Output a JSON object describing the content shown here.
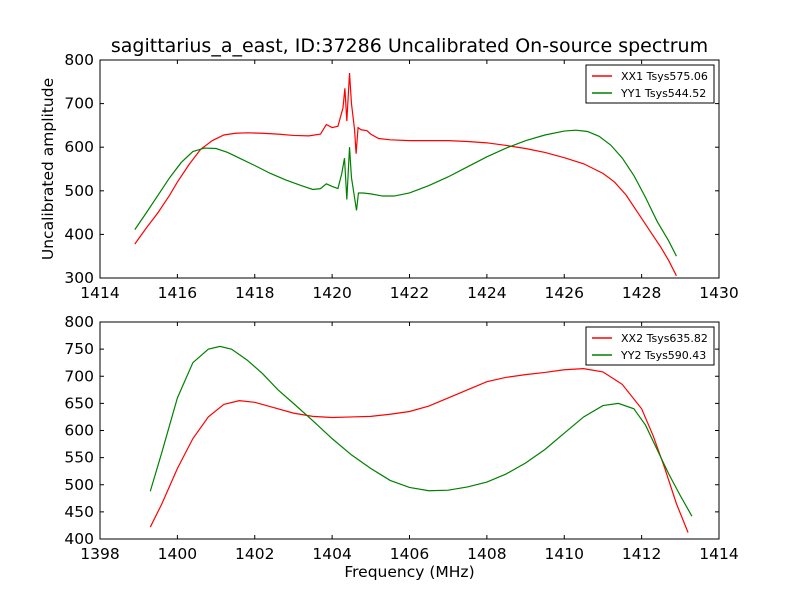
{
  "chart_data": [
    {
      "type": "line",
      "title": "sagittarius_a_east, ID:37286 Uncalibrated On-source spectrum",
      "xlabel": "",
      "ylabel": "Uncalibrated amplitude",
      "xlim": [
        1414,
        1430
      ],
      "ylim": [
        300,
        800
      ],
      "xticks": [
        1414,
        1416,
        1418,
        1420,
        1422,
        1424,
        1426,
        1428,
        1430
      ],
      "yticks": [
        300,
        400,
        500,
        600,
        700,
        800
      ],
      "legend_position": "top-right",
      "grid": false,
      "series": [
        {
          "name": "XX1 Tsys575.06",
          "color": "#ff0000",
          "points": [
            [
              1414.9,
              378
            ],
            [
              1415.2,
              415
            ],
            [
              1415.5,
              450
            ],
            [
              1415.8,
              490
            ],
            [
              1416.0,
              520
            ],
            [
              1416.3,
              560
            ],
            [
              1416.6,
              595
            ],
            [
              1416.9,
              615
            ],
            [
              1417.2,
              628
            ],
            [
              1417.5,
              632
            ],
            [
              1417.8,
              633
            ],
            [
              1418.2,
              632
            ],
            [
              1418.6,
              630
            ],
            [
              1419.0,
              627
            ],
            [
              1419.4,
              626
            ],
            [
              1419.7,
              630
            ],
            [
              1419.85,
              652
            ],
            [
              1420.0,
              645
            ],
            [
              1420.15,
              648
            ],
            [
              1420.28,
              690
            ],
            [
              1420.33,
              735
            ],
            [
              1420.38,
              660
            ],
            [
              1420.45,
              770
            ],
            [
              1420.5,
              700
            ],
            [
              1420.58,
              640
            ],
            [
              1420.62,
              585
            ],
            [
              1420.67,
              645
            ],
            [
              1420.75,
              640
            ],
            [
              1420.9,
              638
            ],
            [
              1421.0,
              630
            ],
            [
              1421.2,
              620
            ],
            [
              1421.5,
              617
            ],
            [
              1422.0,
              615
            ],
            [
              1422.5,
              615
            ],
            [
              1423.0,
              615
            ],
            [
              1423.5,
              613
            ],
            [
              1424.0,
              610
            ],
            [
              1424.5,
              604
            ],
            [
              1425.0,
              597
            ],
            [
              1425.5,
              588
            ],
            [
              1426.0,
              576
            ],
            [
              1426.5,
              562
            ],
            [
              1427.0,
              540
            ],
            [
              1427.3,
              520
            ],
            [
              1427.6,
              490
            ],
            [
              1427.9,
              450
            ],
            [
              1428.2,
              410
            ],
            [
              1428.5,
              370
            ],
            [
              1428.7,
              340
            ],
            [
              1428.9,
              305
            ]
          ]
        },
        {
          "name": "YY1 Tsys544.52",
          "color": "#008000",
          "points": [
            [
              1414.9,
              411
            ],
            [
              1415.2,
              450
            ],
            [
              1415.5,
              490
            ],
            [
              1415.8,
              530
            ],
            [
              1416.1,
              565
            ],
            [
              1416.4,
              590
            ],
            [
              1416.7,
              598
            ],
            [
              1417.0,
              597
            ],
            [
              1417.3,
              588
            ],
            [
              1417.6,
              575
            ],
            [
              1418.0,
              558
            ],
            [
              1418.4,
              540
            ],
            [
              1418.8,
              525
            ],
            [
              1419.2,
              512
            ],
            [
              1419.5,
              503
            ],
            [
              1419.7,
              505
            ],
            [
              1419.85,
              516
            ],
            [
              1420.0,
              510
            ],
            [
              1420.15,
              505
            ],
            [
              1420.25,
              540
            ],
            [
              1420.32,
              575
            ],
            [
              1420.38,
              480
            ],
            [
              1420.45,
              600
            ],
            [
              1420.5,
              530
            ],
            [
              1420.57,
              490
            ],
            [
              1420.63,
              455
            ],
            [
              1420.68,
              495
            ],
            [
              1420.8,
              495
            ],
            [
              1421.0,
              493
            ],
            [
              1421.3,
              488
            ],
            [
              1421.6,
              488
            ],
            [
              1422.0,
              495
            ],
            [
              1422.5,
              512
            ],
            [
              1423.0,
              532
            ],
            [
              1423.5,
              555
            ],
            [
              1424.0,
              578
            ],
            [
              1424.5,
              598
            ],
            [
              1425.0,
              615
            ],
            [
              1425.5,
              628
            ],
            [
              1426.0,
              637
            ],
            [
              1426.3,
              639
            ],
            [
              1426.6,
              636
            ],
            [
              1426.9,
              625
            ],
            [
              1427.2,
              605
            ],
            [
              1427.5,
              575
            ],
            [
              1427.8,
              535
            ],
            [
              1428.1,
              485
            ],
            [
              1428.4,
              430
            ],
            [
              1428.7,
              385
            ],
            [
              1428.9,
              350
            ]
          ]
        }
      ]
    },
    {
      "type": "line",
      "title": "",
      "xlabel": "Frequency (MHz)",
      "ylabel": "",
      "xlim": [
        1398,
        1414
      ],
      "ylim": [
        400,
        800
      ],
      "xticks": [
        1398,
        1400,
        1402,
        1404,
        1406,
        1408,
        1410,
        1412,
        1414
      ],
      "yticks": [
        400,
        450,
        500,
        550,
        600,
        650,
        700,
        750,
        800
      ],
      "legend_position": "top-right",
      "grid": false,
      "series": [
        {
          "name": "XX2 Tsys635.82",
          "color": "#ff0000",
          "points": [
            [
              1399.3,
              422
            ],
            [
              1399.6,
              465
            ],
            [
              1400.0,
              530
            ],
            [
              1400.4,
              585
            ],
            [
              1400.8,
              625
            ],
            [
              1401.2,
              648
            ],
            [
              1401.6,
              655
            ],
            [
              1402.0,
              652
            ],
            [
              1402.5,
              642
            ],
            [
              1403.0,
              632
            ],
            [
              1403.5,
              626
            ],
            [
              1404.0,
              624
            ],
            [
              1404.5,
              625
            ],
            [
              1405.0,
              626
            ],
            [
              1405.5,
              630
            ],
            [
              1406.0,
              635
            ],
            [
              1406.5,
              645
            ],
            [
              1407.0,
              660
            ],
            [
              1407.5,
              675
            ],
            [
              1408.0,
              690
            ],
            [
              1408.5,
              698
            ],
            [
              1409.0,
              703
            ],
            [
              1409.5,
              707
            ],
            [
              1410.0,
              712
            ],
            [
              1410.5,
              714
            ],
            [
              1411.0,
              708
            ],
            [
              1411.5,
              685
            ],
            [
              1412.0,
              640
            ],
            [
              1412.3,
              590
            ],
            [
              1412.6,
              530
            ],
            [
              1412.9,
              465
            ],
            [
              1413.2,
              412
            ]
          ]
        },
        {
          "name": "YY2 Tsys590.43",
          "color": "#008000",
          "points": [
            [
              1399.3,
              488
            ],
            [
              1399.6,
              560
            ],
            [
              1400.0,
              660
            ],
            [
              1400.4,
              725
            ],
            [
              1400.8,
              750
            ],
            [
              1401.1,
              755
            ],
            [
              1401.4,
              750
            ],
            [
              1401.8,
              730
            ],
            [
              1402.2,
              705
            ],
            [
              1402.6,
              675
            ],
            [
              1403.0,
              650
            ],
            [
              1403.5,
              618
            ],
            [
              1404.0,
              585
            ],
            [
              1404.5,
              555
            ],
            [
              1405.0,
              530
            ],
            [
              1405.5,
              508
            ],
            [
              1406.0,
              495
            ],
            [
              1406.5,
              489
            ],
            [
              1407.0,
              490
            ],
            [
              1407.5,
              496
            ],
            [
              1408.0,
              505
            ],
            [
              1408.5,
              520
            ],
            [
              1409.0,
              540
            ],
            [
              1409.5,
              565
            ],
            [
              1410.0,
              595
            ],
            [
              1410.5,
              625
            ],
            [
              1411.0,
              646
            ],
            [
              1411.4,
              650
            ],
            [
              1411.8,
              640
            ],
            [
              1412.1,
              610
            ],
            [
              1412.4,
              565
            ],
            [
              1412.7,
              520
            ],
            [
              1413.0,
              480
            ],
            [
              1413.3,
              442
            ]
          ]
        }
      ]
    }
  ]
}
